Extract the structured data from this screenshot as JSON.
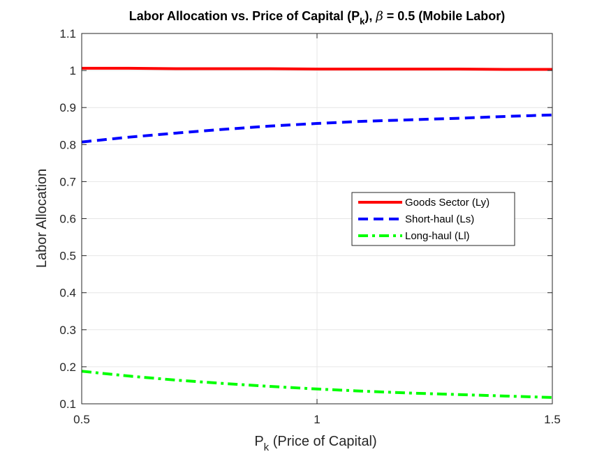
{
  "chart_data": {
    "type": "line",
    "title": {
      "before": "Labor Allocation vs. Price of Capital (P",
      "sub": "k",
      "middle": "), ",
      "beta": "β",
      "after": " = 0.5 (Mobile Labor)"
    },
    "xlabel": {
      "main": "P",
      "sub": "k",
      "rest": " (Price of Capital)"
    },
    "ylabel": "Labor Allocation",
    "xlim": [
      0.5,
      1.5
    ],
    "ylim": [
      0.1,
      1.1
    ],
    "xticks": [
      0.5,
      1,
      1.5
    ],
    "xtick_labels": [
      "0.5",
      "1",
      "1.5"
    ],
    "yticks": [
      0.1,
      0.2,
      0.3,
      0.4,
      0.5,
      0.6,
      0.7,
      0.8,
      0.9,
      1.0,
      1.1
    ],
    "ytick_labels": [
      "0.1",
      "0.2",
      "0.3",
      "0.4",
      "0.5",
      "0.6",
      "0.7",
      "0.8",
      "0.9",
      "1",
      "1.1"
    ],
    "grid": true,
    "legend_position": "right-middle",
    "x": [
      0.5,
      0.6,
      0.7,
      0.8,
      0.9,
      1.0,
      1.1,
      1.2,
      1.3,
      1.4,
      1.5
    ],
    "series": [
      {
        "name": "Goods Sector (Ly)",
        "color": "#ff0000",
        "style": "solid",
        "values": [
          1.006,
          1.006,
          1.005,
          1.005,
          1.005,
          1.004,
          1.004,
          1.004,
          1.004,
          1.003,
          1.003
        ]
      },
      {
        "name": "Short-haul (Ls)",
        "color": "#0000ff",
        "style": "dashed",
        "values": [
          0.807,
          0.82,
          0.831,
          0.841,
          0.85,
          0.857,
          0.863,
          0.867,
          0.871,
          0.876,
          0.88
        ]
      },
      {
        "name": "Long-haul (Ll)",
        "color": "#00ff00",
        "style": "dashdot",
        "values": [
          0.188,
          0.175,
          0.164,
          0.155,
          0.147,
          0.14,
          0.134,
          0.129,
          0.125,
          0.121,
          0.117
        ]
      }
    ]
  }
}
